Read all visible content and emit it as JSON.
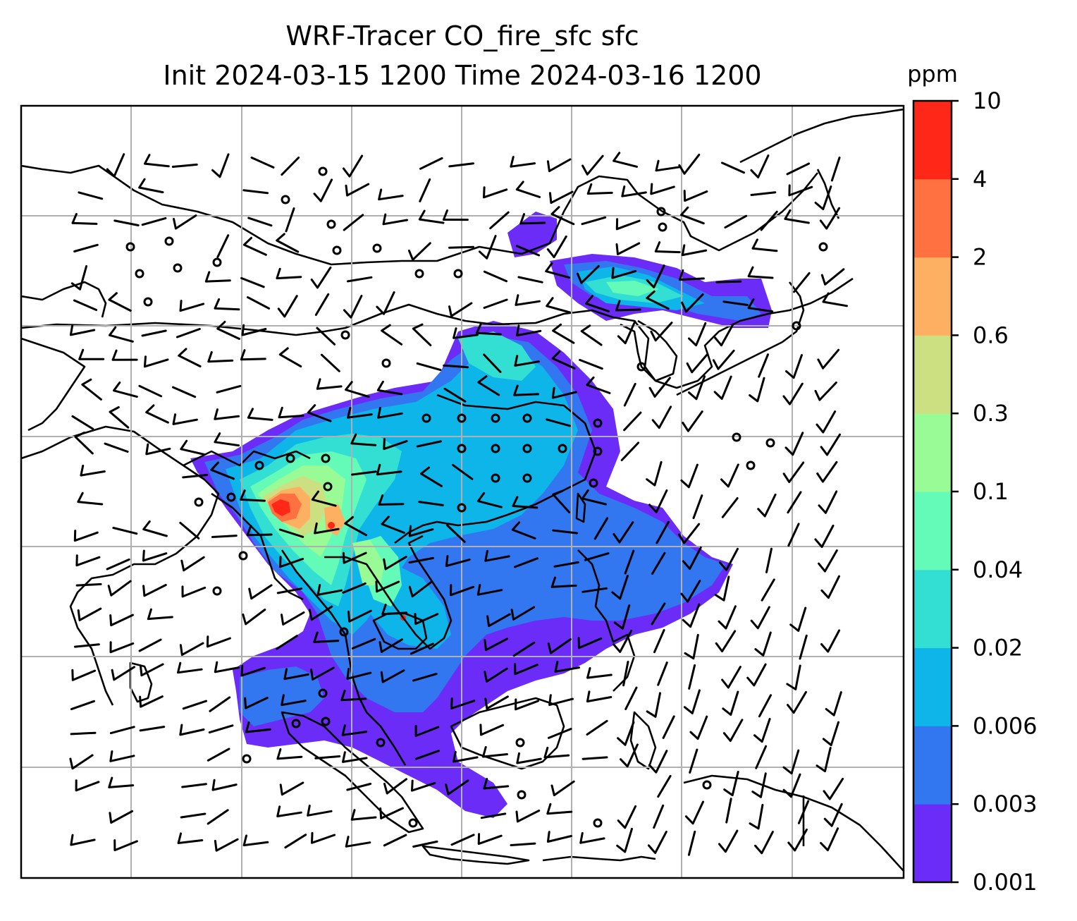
{
  "title": {
    "line1": "WRF-Tracer CO_fire_sfc sfc",
    "line2": "Init 2024-03-15 1200 Time 2024-03-16 1200"
  },
  "colorbar": {
    "units": "ppm",
    "levels": [
      "0.001",
      "0.003",
      "0.006",
      "0.02",
      "0.04",
      "0.1",
      "0.3",
      "0.6",
      "2",
      "4",
      "10"
    ],
    "colors": [
      "#6a2cf6",
      "#3276f0",
      "#0db5e9",
      "#33dfd2",
      "#64fbb9",
      "#99fb96",
      "#cde081",
      "#feb062",
      "#ff7140",
      "#ff2818"
    ]
  },
  "map": {
    "gridline_color": "#b0b0b0",
    "coastline_color": "#000000",
    "variable": "CO_fire_sfc",
    "overlay": "wind barbs"
  }
}
